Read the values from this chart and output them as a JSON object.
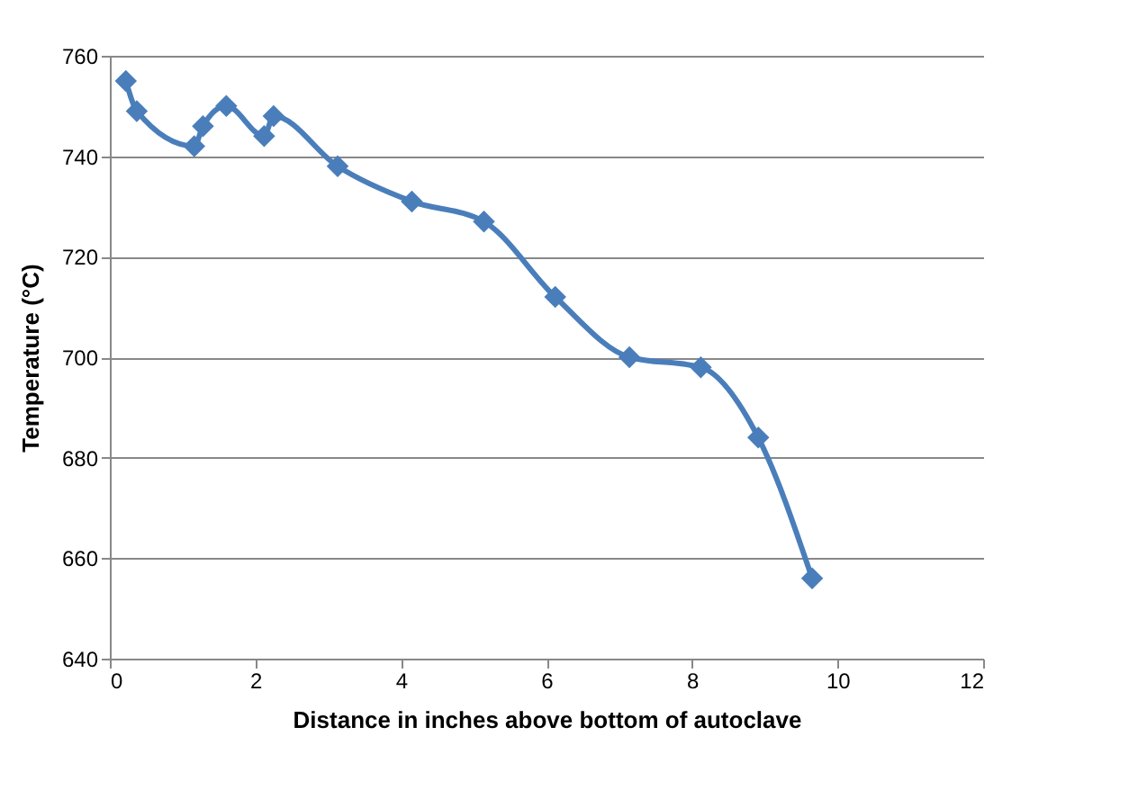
{
  "chart_data": {
    "type": "line",
    "xlabel": "Distance in inches above bottom of autoclave",
    "ylabel": "Temperature (°C)",
    "x": [
      0.22,
      0.37,
      1.16,
      1.28,
      1.6,
      2.12,
      2.25,
      3.13,
      4.15,
      5.14,
      6.12,
      7.14,
      8.12,
      8.91,
      9.65
    ],
    "series": [
      {
        "color": "#4a7ebb",
        "values": [
          755,
          749,
          742,
          746,
          750,
          744,
          748,
          738,
          731,
          727,
          712,
          700,
          698,
          684,
          656
        ]
      }
    ],
    "xlim": [
      0,
      12
    ],
    "xticks": [
      0,
      2,
      4,
      6,
      8,
      10,
      12
    ],
    "ylim": [
      640,
      760
    ],
    "yticks": [
      640,
      660,
      680,
      700,
      720,
      740,
      760
    ],
    "grid": "y",
    "marker": "diamond",
    "line_style": "solid"
  }
}
